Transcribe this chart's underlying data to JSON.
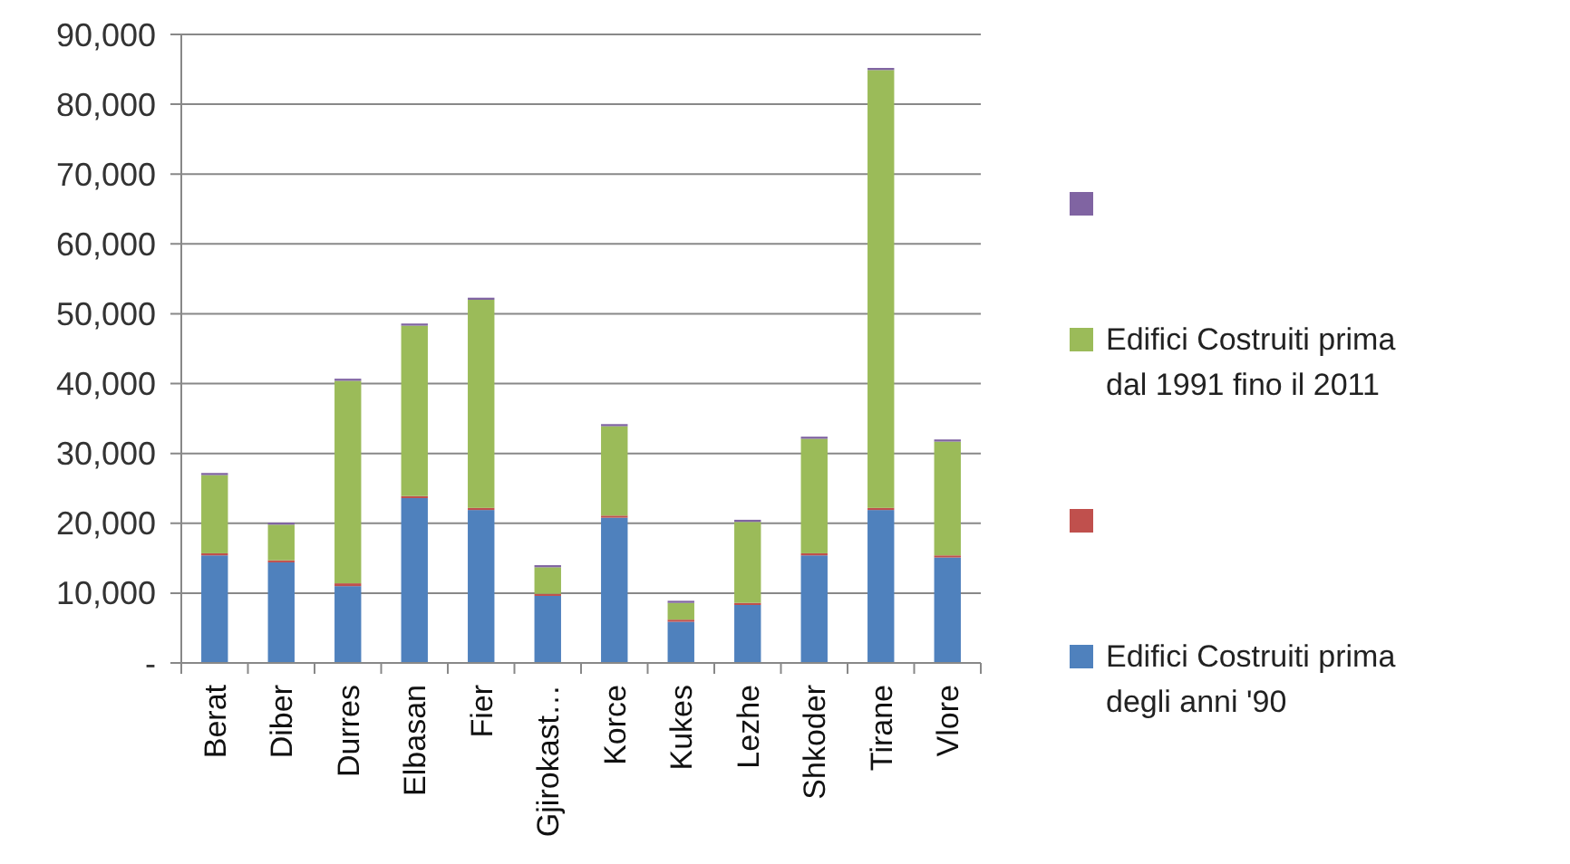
{
  "chart_data": {
    "type": "bar",
    "stacked": true,
    "categories": [
      "Berat",
      "Diber",
      "Durres",
      "Elbasan",
      "Fier",
      "Gjirokast…",
      "Korce",
      "Kukes",
      "Lezhe",
      "Shkoder",
      "Tirane",
      "Vlore"
    ],
    "series": [
      {
        "name": "Edifici Costruiti prima degli anni '90",
        "color": "#4f81bd",
        "values": [
          15400,
          14400,
          11000,
          23600,
          21900,
          9600,
          20800,
          5900,
          8300,
          15400,
          21900,
          15100
        ]
      },
      {
        "color": "#c0504d",
        "values": [
          300,
          300,
          400,
          300,
          300,
          300,
          300,
          300,
          300,
          300,
          300,
          300
        ]
      },
      {
        "name": "Edifici Costruiti prima dal 1991 fino il 2011",
        "color": "#9bbb59",
        "values": [
          11200,
          5100,
          29000,
          24400,
          29800,
          3800,
          12800,
          2400,
          11600,
          16400,
          62700,
          16300
        ]
      },
      {
        "color": "#8064a2",
        "values": [
          300,
          300,
          300,
          300,
          300,
          300,
          300,
          300,
          300,
          300,
          300,
          300
        ]
      }
    ],
    "ylim": [
      0,
      90000
    ],
    "yticks": [
      {
        "value": 0,
        "label": "-"
      },
      {
        "value": 10000,
        "label": "10,000"
      },
      {
        "value": 20000,
        "label": "20,000"
      },
      {
        "value": 30000,
        "label": "30,000"
      },
      {
        "value": 40000,
        "label": "40,000"
      },
      {
        "value": 50000,
        "label": "50,000"
      },
      {
        "value": 60000,
        "label": "60,000"
      },
      {
        "value": 70000,
        "label": "70,000"
      },
      {
        "value": 80000,
        "label": "80,000"
      },
      {
        "value": 90000,
        "label": "90,000"
      }
    ],
    "grid": "y",
    "legend": "right"
  }
}
